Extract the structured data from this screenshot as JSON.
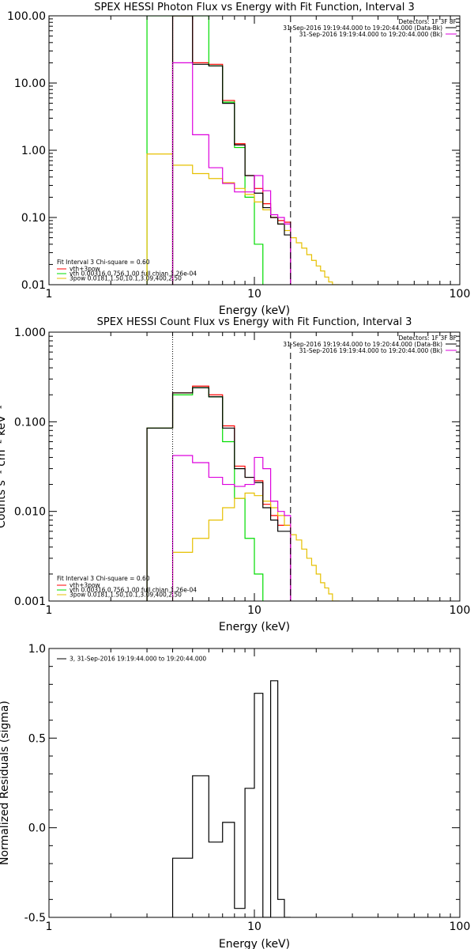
{
  "colors": {
    "axis": "#000000",
    "bg": "#ffffff",
    "red": "#ff0000",
    "green": "#00dd00",
    "magenta": "#dd00dd",
    "yellow": "#e6c000",
    "black": "#000000"
  },
  "chart_data": [
    {
      "type": "line",
      "title": "SPEX HESSI Photon Flux vs Energy with Fit Function, Interval 3",
      "xlabel": "Energy (keV)",
      "ylabel": "",
      "xscale": "log",
      "yscale": "log",
      "xlim": [
        1,
        100
      ],
      "ylim": [
        0.01,
        100
      ],
      "xticks": [
        1,
        10,
        100
      ],
      "xtick_labels": [
        "1",
        "10",
        "100"
      ],
      "yticks": [
        0.01,
        0.1,
        1,
        10,
        100
      ],
      "ytick_labels": [
        "0.01",
        "0.10",
        "1.00",
        "10.00",
        "100.00"
      ],
      "detectors_text": "Detectors: 1F 3F 8F",
      "time_lines": [
        "31-Sep-2016 19:19:44.000 to 19:20:44.000 (Data-Bk)",
        "31-Sep-2016 19:19:44.000 to 19:20:44.000 (Bk)"
      ],
      "fit_header": "Fit Interval 3   Chi-square = 0.60",
      "vlines": [
        {
          "x": 4.0,
          "style": "dotted"
        },
        {
          "x": 15.0,
          "style": "dashed"
        }
      ],
      "series": [
        {
          "name": "vth+3pow",
          "color": "red",
          "edges": [
            4,
            5,
            6,
            7,
            8,
            9,
            10,
            11,
            12,
            13,
            14,
            15
          ],
          "values": [
            100,
            20,
            19,
            5.5,
            1.25,
            0.42,
            0.27,
            0.16,
            0.1,
            0.09,
            0.085
          ]
        },
        {
          "name": "vth 0.00316,0.756,1.00  full chian 1.26e-04",
          "color": "green",
          "edges": [
            3,
            4,
            5,
            6,
            7,
            8,
            9,
            10,
            11
          ],
          "values": [
            100,
            100,
            100,
            18,
            5.2,
            1.1,
            0.2,
            0.04
          ]
        },
        {
          "name": "3pow 0.0181,1.50,10.1,3.09,400,2.50",
          "color": "yellow",
          "edges": [
            3,
            4,
            5,
            6,
            7,
            8,
            9,
            10,
            11,
            12,
            13,
            14,
            15,
            16,
            17,
            18,
            19,
            20,
            21,
            22,
            23,
            24,
            25,
            26
          ],
          "values": [
            0.88,
            0.6,
            0.45,
            0.38,
            0.33,
            0.27,
            0.22,
            0.17,
            0.13,
            0.1,
            0.08,
            0.064,
            0.05,
            0.042,
            0.035,
            0.028,
            0.023,
            0.019,
            0.016,
            0.013,
            0.011,
            0.01,
            0.01
          ]
        },
        {
          "name": "",
          "color": "black",
          "edges": [
            4,
            5,
            6,
            7,
            8,
            9,
            10,
            11,
            12,
            13,
            14,
            15
          ],
          "values": [
            100,
            19,
            18,
            5.0,
            1.2,
            0.42,
            0.23,
            0.14,
            0.1,
            0.08,
            0.055
          ]
        },
        {
          "name": "",
          "color": "magenta",
          "edges": [
            4,
            5,
            6,
            7,
            8,
            9,
            10,
            11,
            12,
            13,
            14,
            15
          ],
          "values": [
            20,
            1.7,
            0.55,
            0.32,
            0.24,
            0.24,
            0.42,
            0.25,
            0.11,
            0.1,
            0.08
          ]
        }
      ]
    },
    {
      "type": "line",
      "title": "SPEX HESSI Count Flux vs Energy with Fit Function, Interval 3",
      "xlabel": "Energy (keV)",
      "ylabel": "",
      "xscale": "log",
      "yscale": "log",
      "xlim": [
        1,
        100
      ],
      "ylim": [
        0.001,
        1
      ],
      "xticks": [
        1,
        10,
        100
      ],
      "xtick_labels": [
        "1",
        "10",
        "100"
      ],
      "yticks": [
        0.001,
        0.01,
        0.1,
        1
      ],
      "ytick_labels": [
        "0.001",
        "0.010",
        "0.100",
        "1.000"
      ],
      "detectors_text": "Detectors: 1F 3F 8F",
      "time_lines": [
        "31-Sep-2016 19:19:44.000 to 19:20:44.000 (Data-Bk)",
        "31-Sep-2016 19:19:44.000 to 19:20:44.000 (Bk)"
      ],
      "fit_header": "Fit Interval 3   Chi-square = 0.60",
      "vlines": [
        {
          "x": 4.0,
          "style": "dotted"
        },
        {
          "x": 15.0,
          "style": "dashed"
        }
      ],
      "series": [
        {
          "name": "vth+3pow",
          "color": "red",
          "edges": [
            3,
            4,
            5,
            6,
            7,
            8,
            9,
            10,
            11,
            12,
            13,
            14,
            15
          ],
          "values": [
            0.085,
            0.21,
            0.25,
            0.2,
            0.09,
            0.032,
            0.024,
            0.022,
            0.012,
            0.009,
            0.007,
            0.007
          ]
        },
        {
          "name": "vth 0.00316,0.756,1.00  full chian 1.26e-04",
          "color": "green",
          "edges": [
            3,
            4,
            5,
            6,
            7,
            8,
            9,
            10,
            11
          ],
          "values": [
            0.085,
            0.2,
            0.24,
            0.19,
            0.06,
            0.014,
            0.005,
            0.002
          ]
        },
        {
          "name": "3pow 0.0181,1.50,10.1,3.09,400,2.50",
          "color": "yellow",
          "edges": [
            4,
            5,
            6,
            7,
            8,
            9,
            10,
            11,
            12,
            13,
            14,
            15,
            16,
            17,
            18,
            19,
            20,
            21,
            22,
            23,
            24,
            25,
            26
          ],
          "values": [
            0.0035,
            0.005,
            0.008,
            0.011,
            0.014,
            0.016,
            0.015,
            0.013,
            0.011,
            0.009,
            0.007,
            0.0055,
            0.0048,
            0.0038,
            0.003,
            0.0025,
            0.002,
            0.0016,
            0.0014,
            0.0012,
            0.001,
            0.001
          ]
        },
        {
          "name": "",
          "color": "black",
          "edges": [
            3,
            4,
            5,
            6,
            7,
            8,
            9,
            10,
            11,
            12,
            13,
            14,
            15
          ],
          "values": [
            0.085,
            0.21,
            0.24,
            0.19,
            0.085,
            0.03,
            0.024,
            0.021,
            0.011,
            0.008,
            0.006,
            0.006
          ]
        },
        {
          "name": "",
          "color": "magenta",
          "edges": [
            4,
            5,
            6,
            7,
            8,
            9,
            10,
            11,
            12,
            13,
            14,
            15
          ],
          "values": [
            0.042,
            0.035,
            0.024,
            0.02,
            0.019,
            0.02,
            0.04,
            0.03,
            0.013,
            0.01,
            0.009
          ]
        }
      ]
    },
    {
      "type": "line",
      "title": "",
      "xlabel": "Energy (keV)",
      "ylabel": "Normalized Residuals (sigma)",
      "xscale": "log",
      "yscale": "linear",
      "xlim": [
        1,
        100
      ],
      "ylim": [
        -0.5,
        1.0
      ],
      "xticks": [
        1,
        10,
        100
      ],
      "xtick_labels": [
        "1",
        "10",
        "100"
      ],
      "yticks": [
        -0.5,
        0,
        0.5,
        1.0
      ],
      "ytick_labels": [
        "-0.5",
        "0.0",
        "0.5",
        "1.0"
      ],
      "legend_text": "3, 31-Sep-2016 19:19:44.000 to 19:20:44.000",
      "series": [
        {
          "name": "3, 31-Sep-2016 19:19:44.000 to 19:20:44.000",
          "color": "black",
          "edges": [
            4,
            5,
            6,
            7,
            8,
            9,
            10,
            11,
            12,
            13,
            14,
            15
          ],
          "values": [
            -0.17,
            0.29,
            -0.08,
            0.03,
            -0.45,
            0.22,
            0.75,
            -0.5,
            0.82,
            -0.4,
            -0.5
          ]
        }
      ]
    }
  ],
  "panels": {
    "p1": {
      "ylabel_visible": ""
    },
    "p2": {
      "ylabel_visible": "Counts s⁻¹ cm⁻² keV⁻¹"
    }
  }
}
